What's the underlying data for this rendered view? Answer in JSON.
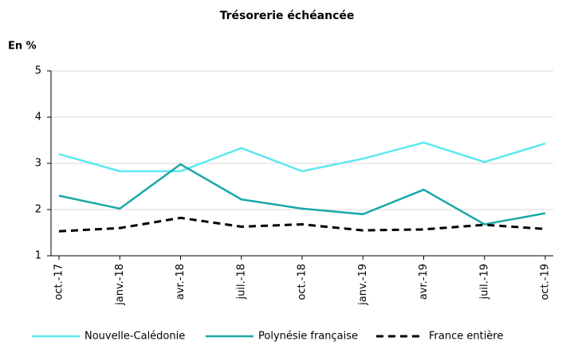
{
  "chart_data": {
    "type": "line",
    "title": "Trésorerie échéancée",
    "y_label": "En %",
    "categories": [
      "oct.-17",
      "janv.-18",
      "avr.-18",
      "juil.-18",
      "oct.-18",
      "janv.-19",
      "avr.-19",
      "juil.-19",
      "oct.-19"
    ],
    "series": [
      {
        "name": "Nouvelle-Calédonie",
        "color": "#5ce8f0",
        "values": [
          3.2,
          2.83,
          2.83,
          3.33,
          2.83,
          3.1,
          3.45,
          3.03,
          3.43
        ]
      },
      {
        "name": "Polynésie française",
        "color": "#1aa8a8",
        "values": [
          2.3,
          2.02,
          2.98,
          2.22,
          2.02,
          1.9,
          2.43,
          1.68,
          1.92
        ]
      },
      {
        "name": "France entière",
        "color": "#000000",
        "dashed": true,
        "values": [
          1.53,
          1.6,
          1.82,
          1.63,
          1.68,
          1.55,
          1.57,
          1.67,
          1.58
        ]
      }
    ],
    "ylim": [
      1,
      5
    ],
    "yticks": [
      1,
      2,
      3,
      4,
      5
    ],
    "grid": true,
    "legend": "bottom"
  }
}
